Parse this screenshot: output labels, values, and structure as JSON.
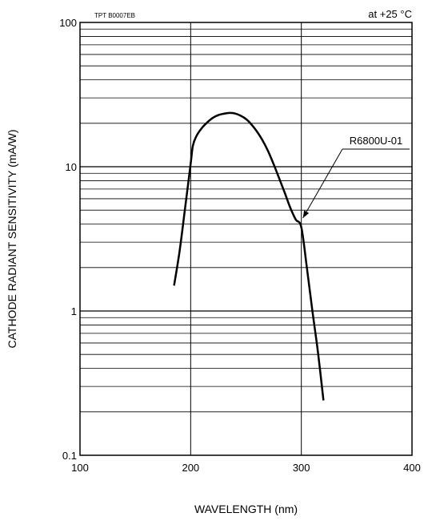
{
  "chart_data": {
    "type": "line",
    "title": "",
    "code": "TPT B0007EB",
    "condition": "at +25 °C",
    "xlabel": "WAVELENGTH (nm)",
    "ylabel": "CATHODE RADIANT SENSITIVITY (mA/W)",
    "xlim": [
      100,
      400
    ],
    "ylim": [
      0.1,
      100
    ],
    "yscale": "log",
    "grid": true,
    "x_ticks": [
      100,
      200,
      300,
      400
    ],
    "x_tick_labels": [
      "100",
      "200",
      "300",
      "400"
    ],
    "y_ticks": [
      0.1,
      1,
      10,
      100
    ],
    "y_tick_labels": [
      "0.1",
      "1",
      "10",
      "100"
    ],
    "series": [
      {
        "name": "R6800U-01",
        "x": [
          185,
          190,
          195,
          200,
          202,
          205,
          210,
          215,
          220,
          225,
          230,
          235,
          240,
          245,
          250,
          255,
          260,
          265,
          270,
          275,
          280,
          285,
          290,
          295,
          300,
          305,
          310,
          315,
          320
        ],
        "y": [
          1.5,
          2.6,
          5.2,
          10.5,
          14.0,
          16.2,
          18.5,
          20.3,
          21.8,
          22.8,
          23.3,
          23.6,
          23.4,
          22.6,
          21.4,
          19.6,
          17.5,
          15.2,
          12.8,
          10.4,
          8.3,
          6.6,
          5.2,
          4.3,
          3.8,
          2.0,
          1.0,
          0.52,
          0.24
        ]
      }
    ],
    "annotations": [
      {
        "text": "R6800U-01",
        "target_x": 300,
        "target_y": 4.3
      }
    ]
  }
}
